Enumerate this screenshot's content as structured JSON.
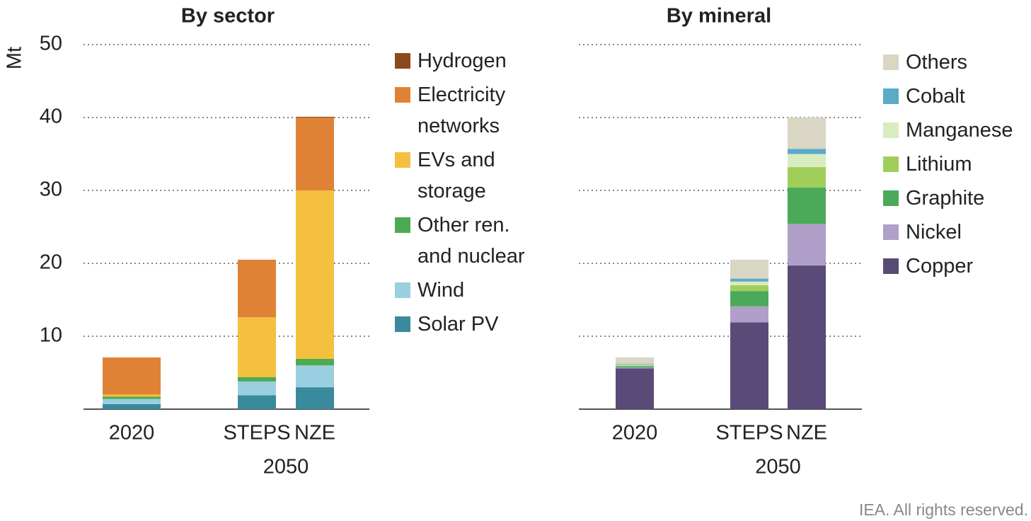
{
  "chart_data": [
    {
      "type": "stacked_bar",
      "title": "By sector",
      "ylabel": "Mt",
      "categories": [
        "2020",
        "STEPS",
        "NZE"
      ],
      "category_group": "2050",
      "ylim": [
        0,
        50
      ],
      "yticks": [
        10,
        20,
        30,
        40,
        50
      ],
      "grid": true,
      "show_tick_labels": true,
      "series": [
        {
          "name": "Solar PV",
          "color": "#3a8a9e",
          "values": [
            0.7,
            1.9,
            3.0
          ]
        },
        {
          "name": "Wind",
          "color": "#99cfe0",
          "values": [
            0.7,
            1.9,
            3.0
          ]
        },
        {
          "name": "Other ren. and nuclear",
          "color": "#4caa50",
          "values": [
            0.3,
            0.6,
            0.9
          ]
        },
        {
          "name": "EVs and storage",
          "color": "#f5c040",
          "values": [
            0.3,
            8.2,
            23.1
          ]
        },
        {
          "name": "Electricity networks",
          "color": "#e08236",
          "values": [
            5.1,
            7.9,
            10.0
          ]
        },
        {
          "name": "Hydrogen",
          "color": "#8b4a1e",
          "values": [
            0,
            0,
            0.1
          ]
        }
      ]
    },
    {
      "type": "stacked_bar",
      "title": "By mineral",
      "categories": [
        "2020",
        "STEPS",
        "NZE"
      ],
      "category_group": "2050",
      "ylim": [
        0,
        50
      ],
      "yticks": [
        10,
        20,
        30,
        40,
        50
      ],
      "grid": true,
      "show_tick_labels": false,
      "series": [
        {
          "name": "Copper",
          "color": "#5a4a78",
          "values": [
            5.6,
            11.9,
            19.7
          ]
        },
        {
          "name": "Nickel",
          "color": "#b09fc8",
          "values": [
            0.1,
            2.2,
            5.7
          ]
        },
        {
          "name": "Graphite",
          "color": "#4aaa5a",
          "values": [
            0.2,
            2.1,
            5.0
          ]
        },
        {
          "name": "Lithium",
          "color": "#9fcf5a",
          "values": [
            0.1,
            0.8,
            2.8
          ]
        },
        {
          "name": "Manganese",
          "color": "#d9ecc0",
          "values": [
            0.1,
            0.5,
            1.8
          ]
        },
        {
          "name": "Cobalt",
          "color": "#5aaac8",
          "values": [
            0.1,
            0.4,
            0.7
          ]
        },
        {
          "name": "Others",
          "color": "#d9d6c4",
          "values": [
            0.9,
            2.6,
            4.3
          ]
        }
      ]
    }
  ],
  "footer": "IEA. All rights reserved."
}
